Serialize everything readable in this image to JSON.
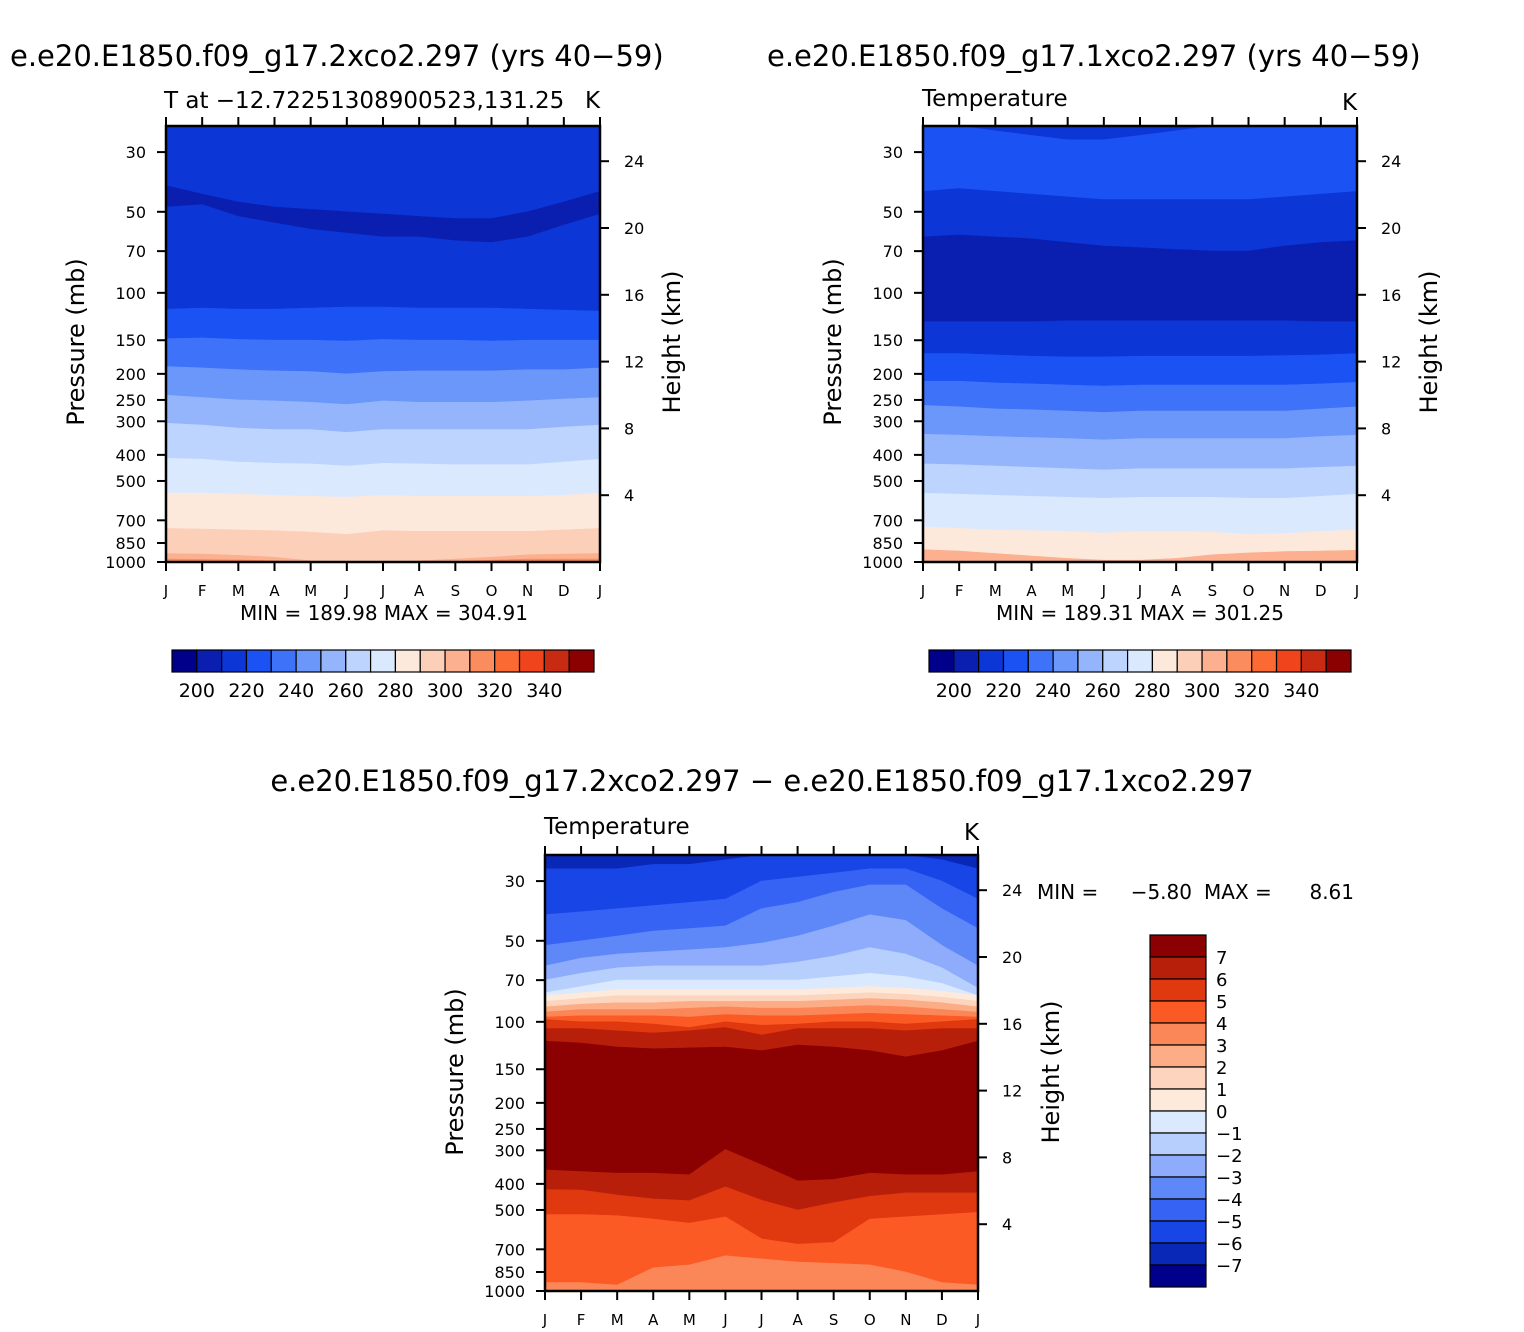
{
  "months": [
    "J",
    "F",
    "M",
    "A",
    "M",
    "J",
    "J",
    "A",
    "S",
    "O",
    "N",
    "D",
    "J"
  ],
  "pressure_ticks": [
    "30",
    "50",
    "70",
    "100",
    "150",
    "200",
    "250",
    "300",
    "400",
    "500",
    "700",
    "850",
    "1000"
  ],
  "height_ticks": [
    "24",
    "20",
    "16",
    "12",
    "8",
    "4"
  ],
  "panels": [
    {
      "case_title": "e.e20.E1850.f09_g17.2xco2.297 (yrs 40−59)",
      "subtitle": "T at −12.72251308900523,131.25",
      "units": "K",
      "ylabel": "Pressure (mb)",
      "ylabel2": "Height (km)",
      "minmax": "MIN = 189.98 MAX = 304.91"
    },
    {
      "case_title": "e.e20.E1850.f09_g17.1xco2.297 (yrs 40−59)",
      "subtitle": "Temperature",
      "units": "K",
      "ylabel": "Pressure (mb)",
      "ylabel2": "Height (km)",
      "minmax": "MIN = 189.31 MAX = 301.25"
    },
    {
      "case_title": "e.e20.E1850.f09_g17.2xco2.297 − e.e20.E1850.f09_g17.1xco2.297",
      "subtitle": "Temperature",
      "units": "K",
      "ylabel": "Pressure (mb)",
      "ylabel2": "Height (km)",
      "minmax_label": "MIN =",
      "min_value": "−5.80",
      "max_label": "MAX =",
      "max_value": "8.61"
    }
  ],
  "temp_colorbar": {
    "colors": [
      "#00008b",
      "#0a1fb0",
      "#0c36d6",
      "#1b52f4",
      "#3e72f8",
      "#6c97fa",
      "#94b5fc",
      "#bcd4fe",
      "#dbe9ff",
      "#fde9dc",
      "#fcd0b8",
      "#fcb08f",
      "#fb8c5e",
      "#fa6a32",
      "#f0441c",
      "#c82a12",
      "#8b0000"
    ],
    "labels": [
      "200",
      "220",
      "240",
      "260",
      "280",
      "300",
      "320",
      "340"
    ]
  },
  "diff_colorbar": {
    "colors": [
      "#8b0000",
      "#b81f0a",
      "#e0380f",
      "#fc5a25",
      "#fb8759",
      "#fcad86",
      "#fdd4bd",
      "#fdeadb",
      "#dbe9ff",
      "#b6cffd",
      "#8eacfb",
      "#5e87f8",
      "#3663f4",
      "#1845e6",
      "#0a28b8",
      "#00008b"
    ],
    "labels": [
      "7",
      "6",
      "5",
      "4",
      "3",
      "2",
      "1",
      "0",
      "−1",
      "−2",
      "−3",
      "−4",
      "−5",
      "−6",
      "−7"
    ]
  },
  "chart_data": [
    {
      "type": "heatmap",
      "title": "e.e20.E1850.f09_g17.2xco2.297 (yrs 40−59)",
      "subtitle": "T at −12.72251308900523,131.25",
      "units": "K",
      "xlabel": "",
      "ylabel": "Pressure (mb)",
      "ylabel_right": "Height (km)",
      "x": [
        "J",
        "F",
        "M",
        "A",
        "M",
        "J",
        "J",
        "A",
        "S",
        "O",
        "N",
        "D",
        "J"
      ],
      "y_pressure_ticks": [
        30,
        50,
        70,
        100,
        150,
        200,
        250,
        300,
        400,
        500,
        700,
        850,
        1000
      ],
      "y_height_ticks_km": [
        24,
        20,
        16,
        12,
        8,
        4
      ],
      "ylim_mb": [
        1000,
        24
      ],
      "contour_levels": [
        190,
        200,
        210,
        220,
        230,
        240,
        250,
        260,
        270,
        280,
        290,
        300,
        310,
        320,
        330,
        340
      ],
      "min": 189.98,
      "max": 304.91,
      "layers_bottom_pressure_mb": [
        {
          "range": "200-210",
          "values": [
            40,
            43,
            46,
            48,
            49,
            50,
            51,
            52,
            53,
            53,
            50,
            46,
            42
          ]
        },
        {
          "range": "190-200",
          "values": [
            48,
            47,
            52,
            55,
            58,
            60,
            62,
            62,
            64,
            65,
            62,
            56,
            51
          ]
        },
        {
          "range": "200-210 (upper edge of cold core)",
          "values": [
            115,
            114,
            115,
            115,
            114,
            113,
            113,
            114,
            114,
            114,
            115,
            116,
            117
          ]
        },
        {
          "range": "210-220",
          "values": [
            148,
            147,
            149,
            150,
            150,
            151,
            149,
            150,
            150,
            151,
            150,
            150,
            150
          ]
        },
        {
          "range": "220-230",
          "values": [
            188,
            190,
            193,
            195,
            196,
            200,
            196,
            195,
            195,
            195,
            193,
            193,
            190
          ]
        },
        {
          "range": "230-240",
          "values": [
            240,
            245,
            250,
            252,
            255,
            260,
            252,
            255,
            255,
            255,
            252,
            248,
            245
          ]
        },
        {
          "range": "240-250",
          "values": [
            305,
            310,
            318,
            322,
            322,
            330,
            322,
            322,
            322,
            322,
            322,
            315,
            310
          ]
        },
        {
          "range": "250-260",
          "values": [
            412,
            415,
            425,
            430,
            432,
            440,
            430,
            432,
            435,
            435,
            435,
            425,
            415
          ]
        },
        {
          "range": "260-270",
          "values": [
            555,
            555,
            560,
            565,
            570,
            575,
            565,
            570,
            570,
            570,
            570,
            565,
            555
          ]
        },
        {
          "range": "270-280",
          "values": [
            750,
            755,
            760,
            765,
            775,
            790,
            765,
            770,
            770,
            770,
            770,
            760,
            750
          ]
        },
        {
          "range": "280-290",
          "values": [
            930,
            935,
            945,
            960,
            990,
            1000,
            1000,
            990,
            975,
            960,
            940,
            935,
            930
          ]
        },
        {
          "range": "290-300",
          "values": [
            975,
            978,
            982,
            990,
            1000,
            1000,
            1000,
            1000,
            995,
            985,
            975,
            975,
            975
          ]
        }
      ]
    },
    {
      "type": "heatmap",
      "title": "e.e20.E1850.f09_g17.1xco2.297 (yrs 40−59)",
      "subtitle": "Temperature",
      "units": "K",
      "xlabel": "",
      "ylabel": "Pressure (mb)",
      "ylabel_right": "Height (km)",
      "x": [
        "J",
        "F",
        "M",
        "A",
        "M",
        "J",
        "J",
        "A",
        "S",
        "O",
        "N",
        "D",
        "J"
      ],
      "y_pressure_ticks": [
        30,
        50,
        70,
        100,
        150,
        200,
        250,
        300,
        400,
        500,
        700,
        850,
        1000
      ],
      "y_height_ticks_km": [
        24,
        20,
        16,
        12,
        8,
        4
      ],
      "ylim_mb": [
        1000,
        24
      ],
      "contour_levels": [
        190,
        200,
        210,
        220,
        230,
        240,
        250,
        260,
        270,
        280,
        290,
        300,
        310,
        320,
        330,
        340
      ],
      "min": 189.31,
      "max": 301.25,
      "layers_bottom_pressure_mb": [
        {
          "range": "200-210",
          "values": [
            24,
            24,
            25,
            26,
            27,
            27,
            26,
            25,
            24,
            24,
            24,
            24,
            24
          ]
        },
        {
          "range": "210-220",
          "values": [
            42,
            41,
            42,
            43,
            44,
            45,
            45,
            45,
            45,
            45,
            44,
            43,
            42
          ]
        },
        {
          "range": "200-210",
          "values": [
            62,
            61,
            62,
            63,
            65,
            67,
            68,
            69,
            70,
            70,
            67,
            65,
            64
          ]
        },
        {
          "range": "190-200",
          "values": [
            128,
            128,
            128,
            128,
            127,
            127,
            127,
            127,
            127,
            127,
            127,
            128,
            128
          ]
        },
        {
          "range": "200-210",
          "values": [
            168,
            168,
            170,
            172,
            173,
            173,
            172,
            172,
            172,
            172,
            171,
            170,
            168
          ]
        },
        {
          "range": "210-220",
          "values": [
            213,
            213,
            216,
            218,
            220,
            222,
            220,
            220,
            220,
            220,
            220,
            218,
            215
          ]
        },
        {
          "range": "220-230",
          "values": [
            262,
            265,
            270,
            272,
            275,
            278,
            275,
            275,
            275,
            275,
            275,
            270,
            265
          ]
        },
        {
          "range": "230-240",
          "values": [
            335,
            338,
            342,
            345,
            348,
            352,
            348,
            348,
            348,
            348,
            348,
            342,
            338
          ]
        },
        {
          "range": "240-250",
          "values": [
            432,
            435,
            440,
            445,
            450,
            455,
            450,
            450,
            450,
            450,
            450,
            445,
            440
          ]
        },
        {
          "range": "250-260",
          "values": [
            555,
            560,
            565,
            570,
            575,
            580,
            575,
            575,
            575,
            580,
            580,
            570,
            560
          ]
        },
        {
          "range": "260-270",
          "values": [
            740,
            750,
            760,
            765,
            770,
            780,
            770,
            770,
            775,
            790,
            785,
            770,
            760
          ]
        },
        {
          "range": "270-280",
          "values": [
            900,
            910,
            930,
            950,
            970,
            985,
            985,
            970,
            940,
            925,
            915,
            910,
            905
          ]
        }
      ]
    },
    {
      "type": "heatmap",
      "title": "e.e20.E1850.f09_g17.2xco2.297 − e.e20.E1850.f09_g17.1xco2.297",
      "subtitle": "Temperature",
      "units": "K",
      "xlabel": "",
      "ylabel": "Pressure (mb)",
      "ylabel_right": "Height (km)",
      "x": [
        "J",
        "F",
        "M",
        "A",
        "M",
        "J",
        "J",
        "A",
        "S",
        "O",
        "N",
        "D",
        "J"
      ],
      "y_pressure_ticks": [
        30,
        50,
        70,
        100,
        150,
        200,
        250,
        300,
        400,
        500,
        700,
        850,
        1000
      ],
      "y_height_ticks_km": [
        24,
        20,
        16,
        12,
        8,
        4
      ],
      "ylim_mb": [
        1000,
        24
      ],
      "contour_levels": [
        -7,
        -6,
        -5,
        -4,
        -3,
        -2,
        -1,
        0,
        1,
        2,
        3,
        4,
        5,
        6,
        7
      ],
      "min": -5.8,
      "max": 8.61,
      "layers_bottom_pressure_mb": [
        {
          "range": "-7 to -6",
          "values": [
            27,
            27,
            27,
            26,
            26,
            25,
            24,
            24,
            24,
            24,
            24,
            25,
            27
          ]
        },
        {
          "range": "-6 to -5",
          "values": [
            40,
            39,
            38,
            37,
            36,
            35,
            30,
            29,
            28,
            27,
            27,
            30,
            35
          ]
        },
        {
          "range": "-5 to -4",
          "values": [
            52,
            50,
            48,
            46,
            45,
            44,
            38,
            36,
            33,
            31,
            31,
            38,
            45
          ]
        },
        {
          "range": "-4 to -3",
          "values": [
            62,
            58,
            56,
            55,
            54,
            53,
            51,
            48,
            44,
            40,
            42,
            52,
            62
          ]
        },
        {
          "range": "-3 to -2",
          "values": [
            70,
            66,
            63,
            62,
            62,
            62,
            62,
            60,
            57,
            53,
            56,
            63,
            75
          ]
        },
        {
          "range": "-2 to -1",
          "values": [
            78,
            74,
            70,
            70,
            70,
            70,
            70,
            70,
            68,
            66,
            68,
            72,
            80
          ]
        },
        {
          "range": "-1 to 0",
          "values": [
            80,
            78,
            76,
            76,
            76,
            76,
            76,
            76,
            75,
            74,
            75,
            77,
            80
          ]
        },
        {
          "range": "0 to 1",
          "values": [
            84,
            82,
            80,
            80,
            80,
            80,
            80,
            80,
            79,
            78,
            79,
            81,
            84
          ]
        },
        {
          "range": "1 to 2",
          "values": [
            88,
            86,
            85,
            85,
            84,
            84,
            84,
            84,
            83,
            82,
            83,
            85,
            88
          ]
        },
        {
          "range": "2 to 3",
          "values": [
            92,
            90,
            90,
            90,
            89,
            88,
            89,
            89,
            88,
            87,
            88,
            90,
            92
          ]
        },
        {
          "range": "3 to 4",
          "values": [
            96,
            95,
            95,
            95,
            96,
            94,
            95,
            95,
            94,
            93,
            94,
            95,
            96
          ]
        },
        {
          "range": "4 to 5",
          "values": [
            98,
            100,
            100,
            102,
            105,
            100,
            103,
            102,
            100,
            100,
            102,
            100,
            98
          ]
        },
        {
          "range": "5 to 6",
          "values": [
            106,
            106,
            108,
            110,
            108,
            105,
            112,
            106,
            106,
            106,
            108,
            106,
            106
          ]
        },
        {
          "range": "6 to 7",
          "values": [
            118,
            120,
            124,
            126,
            125,
            124,
            128,
            122,
            124,
            128,
            135,
            128,
            118
          ]
        },
        {
          "range": "7 to 8.61",
          "values": [
            355,
            360,
            365,
            365,
            370,
            298,
            340,
            390,
            385,
            365,
            370,
            370,
            360
          ]
        },
        {
          "range": "6 to 7 (lower)",
          "values": [
            420,
            422,
            440,
            455,
            462,
            410,
            460,
            500,
            470,
            445,
            432,
            432,
            432
          ]
        },
        {
          "range": "5 to 6 (lower)",
          "values": [
            520,
            520,
            525,
            540,
            560,
            530,
            640,
            670,
            660,
            540,
            530,
            520,
            510
          ]
        },
        {
          "range": "4 to 5 (lower)",
          "values": [
            930,
            930,
            950,
            820,
            800,
            740,
            760,
            780,
            790,
            800,
            850,
            930,
            950
          ]
        },
        {
          "range": "3 to 4 (lower)",
          "values": [
            1000,
            1000,
            1000,
            1000,
            1000,
            1000,
            1000,
            1000,
            1000,
            1000,
            1000,
            1000,
            1000
          ]
        }
      ]
    }
  ]
}
